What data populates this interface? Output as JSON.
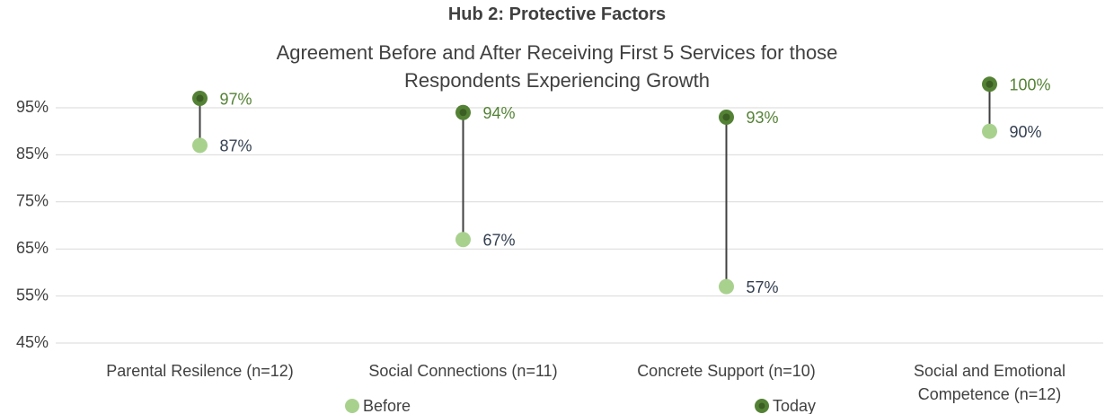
{
  "chart_data": {
    "type": "dumbbell",
    "title": "Hub 2: Protective Factors",
    "subtitle": "Agreement Before and After Receiving First 5 Services for those Respondents Experiencing Growth",
    "categories": [
      "Parental Resilence (n=12)",
      "Social Connections (n=11)",
      "Concrete Support (n=10)",
      "Social and Emotional Competence (n=12)"
    ],
    "series": [
      {
        "name": "Before",
        "color": "#a9d18e",
        "label_color": "#333f50",
        "values": [
          87,
          67,
          57,
          90
        ],
        "value_labels": [
          "87%",
          "67%",
          "57%",
          "90%"
        ]
      },
      {
        "name": "Today",
        "color": "#548235",
        "label_color": "#548235",
        "values": [
          97,
          94,
          93,
          100
        ],
        "value_labels": [
          "97%",
          "94%",
          "93%",
          "100%"
        ]
      }
    ],
    "ylim": [
      45,
      100
    ],
    "yticks": [
      {
        "value": 45,
        "label": "45%"
      },
      {
        "value": 55,
        "label": "55%"
      },
      {
        "value": 65,
        "label": "65%"
      },
      {
        "value": 75,
        "label": "75%"
      },
      {
        "value": 85,
        "label": "85%"
      },
      {
        "value": 95,
        "label": "95%"
      }
    ],
    "grid": true
  }
}
